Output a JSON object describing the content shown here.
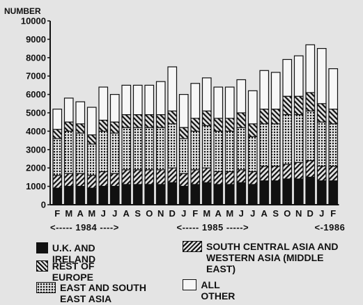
{
  "chart_data": {
    "type": "bar",
    "stacked": true,
    "title": "",
    "ylabel": "NUMBER",
    "xlabel": "",
    "ylim": [
      0,
      10000
    ],
    "yticks": [
      0,
      1000,
      2000,
      3000,
      4000,
      5000,
      6000,
      7000,
      8000,
      9000,
      10000
    ],
    "grid": false,
    "legend_position": "bottom",
    "categories": [
      "F",
      "M",
      "A",
      "M",
      "J",
      "J",
      "A",
      "S",
      "O",
      "N",
      "D",
      "J",
      "F",
      "M",
      "A",
      "M",
      "J",
      "J",
      "A",
      "S",
      "O",
      "N",
      "D",
      "J",
      "F"
    ],
    "periods": [
      {
        "label": "<----- 1984 ---->",
        "from": 0,
        "to": 10
      },
      {
        "label": "<----- 1985 ----->",
        "from": 11,
        "to": 22
      },
      {
        "label": "<-1986",
        "from": 23,
        "to": 24
      }
    ],
    "series": [
      {
        "name": "U.K. AND IRELAND",
        "pattern": "solid",
        "values": [
          900,
          1000,
          1000,
          900,
          1000,
          1000,
          1100,
          1100,
          1100,
          1100,
          1200,
          1000,
          1100,
          1200,
          1100,
          1100,
          1200,
          1100,
          1300,
          1300,
          1400,
          1400,
          1500,
          1300,
          1300
        ]
      },
      {
        "name": "REST OF EUROPE",
        "pattern": "hatch-forward",
        "values": [
          700,
          700,
          700,
          700,
          800,
          700,
          800,
          800,
          800,
          800,
          800,
          700,
          800,
          800,
          700,
          700,
          700,
          700,
          800,
          800,
          800,
          900,
          900,
          800,
          800
        ]
      },
      {
        "name": "EAST AND SOUTH EAST ASIA",
        "pattern": "dots",
        "values": [
          2000,
          2300,
          2200,
          1700,
          2200,
          2200,
          2300,
          2300,
          2300,
          2300,
          2400,
          1900,
          2100,
          2300,
          2200,
          2200,
          2300,
          1900,
          2300,
          2300,
          2700,
          2600,
          2700,
          2400,
          2300
        ]
      },
      {
        "name": "SOUTH CENTRAL ASIA AND WESTERN ASIA (MIDDLE EAST)",
        "pattern": "hatch-back",
        "values": [
          500,
          500,
          500,
          500,
          600,
          600,
          700,
          700,
          700,
          700,
          700,
          600,
          700,
          800,
          700,
          700,
          800,
          700,
          800,
          800,
          1000,
          1000,
          1000,
          1000,
          800
        ]
      },
      {
        "name": "ALL OTHER",
        "pattern": "open",
        "values": [
          1100,
          1300,
          1200,
          1500,
          1800,
          1500,
          1600,
          1600,
          1600,
          1800,
          2400,
          1800,
          1900,
          1800,
          1700,
          1700,
          1800,
          1800,
          2100,
          2000,
          2000,
          2200,
          2600,
          3000,
          2200
        ]
      }
    ]
  }
}
